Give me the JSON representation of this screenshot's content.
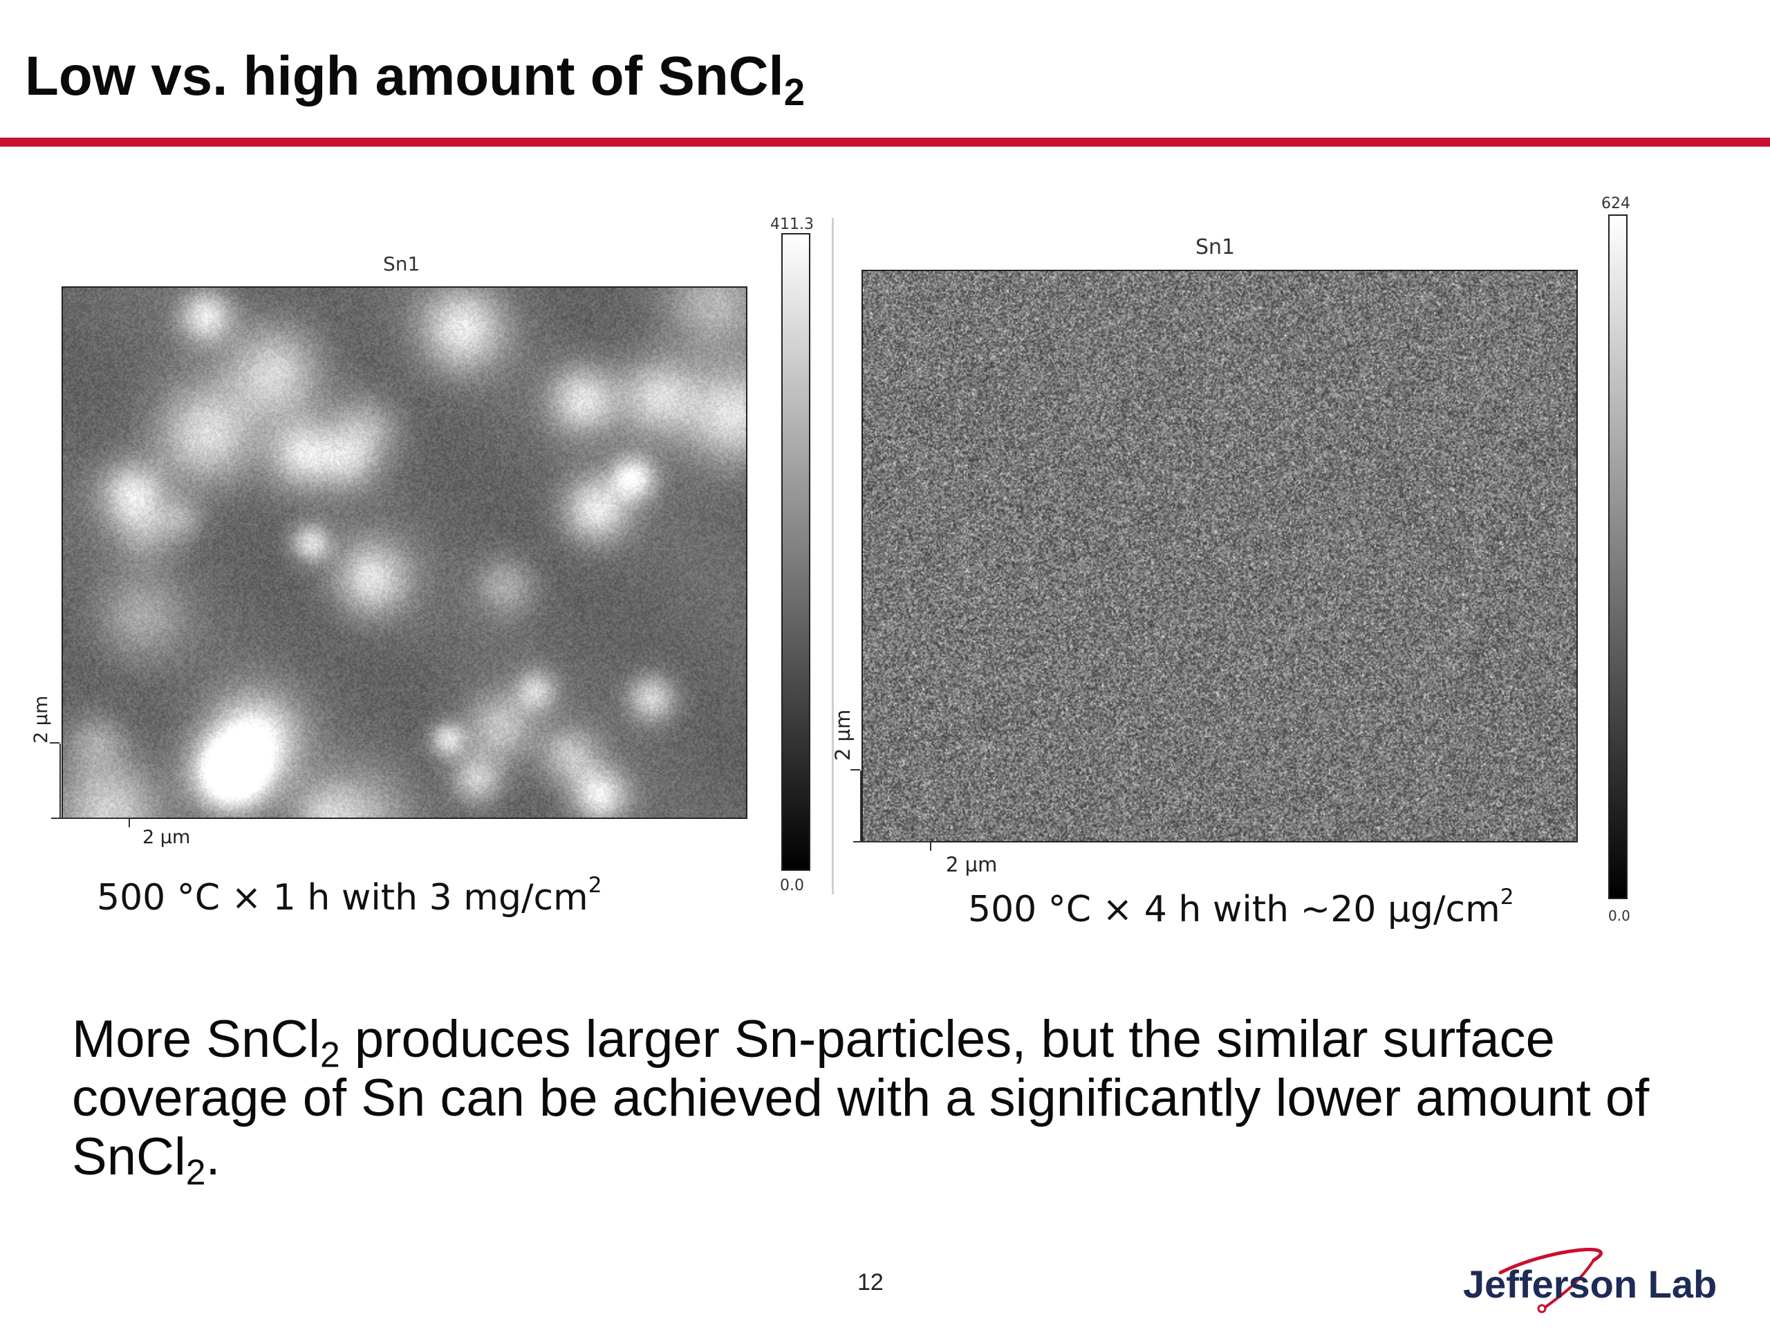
{
  "slide": {
    "title": "Low vs. high amount of SnCl",
    "title_subscript": "2",
    "page_number": "12"
  },
  "panels": [
    {
      "map_title": "Sn1",
      "colorbar_max": "411.3",
      "colorbar_min": "0.0",
      "x_scale_label": "2 µm",
      "y_scale_label": "2 µm",
      "caption": "500 °C × 1 h with 3 mg/cm",
      "caption_superscript": "2"
    },
    {
      "map_title": "Sn1",
      "colorbar_max": "624",
      "colorbar_min": "0.0",
      "x_scale_label": "2 µm",
      "y_scale_label": "2 µm",
      "caption": "500 °C × 4 h with ~20 µg/cm",
      "caption_superscript": "2"
    }
  ],
  "body": {
    "part1": "More SnCl",
    "sub1": "2",
    "part2": " produces larger Sn-particles, but the similar surface coverage of Sn can be achieved with a significantly lower amount of SnCl",
    "sub2": "2",
    "part3": "."
  },
  "logo": {
    "text": "Jefferson Lab"
  },
  "colors": {
    "accent_bar": "#c8102e",
    "logo_navy": "#1e2b55",
    "logo_red": "#c8102e"
  }
}
